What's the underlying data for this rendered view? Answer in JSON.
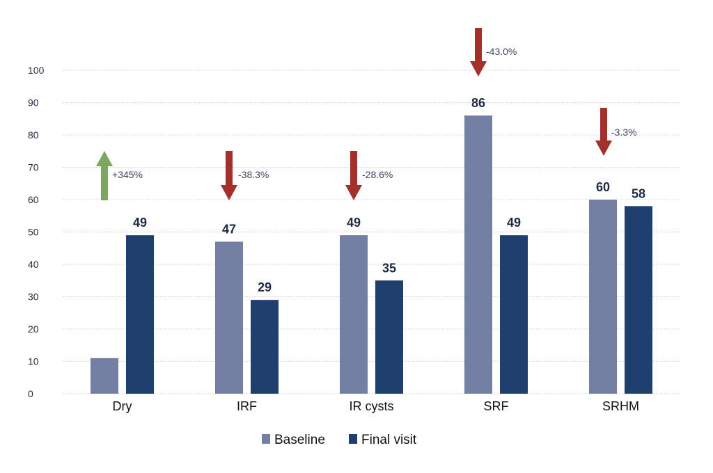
{
  "chart_data": {
    "type": "bar",
    "categories": [
      "Dry",
      "IRF",
      "IR cysts",
      "SRF",
      "SRHM"
    ],
    "series": [
      {
        "name": "Baseline",
        "values": [
          11,
          47,
          49,
          86,
          60
        ],
        "color": "#737fa3"
      },
      {
        "name": "Final visit",
        "values": [
          49,
          29,
          35,
          49,
          58
        ],
        "color": "#1f3f6e"
      }
    ],
    "data_labels": {
      "Baseline": [
        "",
        "47",
        "49",
        "86",
        "60"
      ],
      "Final visit": [
        "49",
        "29",
        "35",
        "49",
        "58"
      ]
    },
    "annotations": [
      {
        "category": "Dry",
        "text": "+345%",
        "direction": "up",
        "color": "#7da661"
      },
      {
        "category": "IRF",
        "text": "-38.3%",
        "direction": "down",
        "color": "#a3302b"
      },
      {
        "category": "IR cysts",
        "text": "-28.6%",
        "direction": "down",
        "color": "#a3302b"
      },
      {
        "category": "SRF",
        "text": "-43.0%",
        "direction": "down",
        "color": "#a3302b"
      },
      {
        "category": "SRHM",
        "text": "-3.3%",
        "direction": "down",
        "color": "#a3302b"
      }
    ],
    "ylim": [
      0,
      100
    ],
    "yticks": [
      "0",
      "10",
      "20",
      "30",
      "40",
      "50",
      "60",
      "70",
      "80",
      "90",
      "100"
    ],
    "grid": true,
    "legend_position": "bottom-center",
    "title": "",
    "xlabel": "",
    "ylabel": ""
  }
}
